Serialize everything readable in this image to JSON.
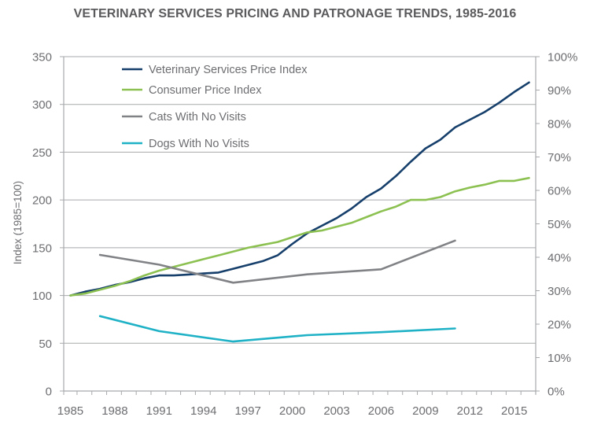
{
  "chart_data": {
    "type": "line",
    "title": "VETERINARY SERVICES PRICING AND PATRONAGE TRENDS, 1985-2016",
    "xlabel": "",
    "ylabel": "Index (1985=100)",
    "y2label": "",
    "xlim": [
      1984.55,
      2016.45
    ],
    "ylim": [
      0,
      350
    ],
    "y2lim": [
      0,
      100
    ],
    "grid": true,
    "legend_position": "top-left",
    "x_ticks": [
      "1985",
      "1988",
      "1991",
      "1994",
      "1997",
      "2000",
      "2003",
      "2006",
      "2009",
      "2012",
      "2015"
    ],
    "x_tick_values": [
      1985,
      1988,
      1991,
      1994,
      1997,
      2000,
      2003,
      2006,
      2009,
      2012,
      2015
    ],
    "y_ticks": [
      "0",
      "50",
      "100",
      "150",
      "200",
      "250",
      "300",
      "350"
    ],
    "y_tick_values": [
      0,
      50,
      100,
      150,
      200,
      250,
      300,
      350
    ],
    "y2_ticks": [
      "0%",
      "10%",
      "20%",
      "30%",
      "40%",
      "50%",
      "60%",
      "70%",
      "80%",
      "90%",
      "100%"
    ],
    "y2_tick_values": [
      0,
      10,
      20,
      30,
      40,
      50,
      60,
      70,
      80,
      90,
      100
    ],
    "series": [
      {
        "name": "Veterinary Services Price Index",
        "axis": "left",
        "color": "#163f6b",
        "x": [
          1985,
          1986,
          1987,
          1988,
          1989,
          1990,
          1991,
          1992,
          1993,
          1994,
          1995,
          1996,
          1997,
          1998,
          1999,
          2000,
          2001,
          2002,
          2003,
          2004,
          2005,
          2006,
          2007,
          2008,
          2009,
          2010,
          2011,
          2012,
          2013,
          2014,
          2015,
          2016
        ],
        "values": [
          100,
          104,
          107,
          111,
          114,
          118,
          121,
          121,
          122,
          123,
          124,
          128,
          132,
          136,
          142,
          154,
          165,
          173,
          181,
          191,
          203,
          212,
          225,
          240,
          254,
          263,
          276,
          284,
          292,
          302,
          313,
          323
        ]
      },
      {
        "name": "Consumer Price Index",
        "axis": "left",
        "color": "#8cc152",
        "x": [
          1985,
          1986,
          1987,
          1988,
          1989,
          1990,
          1991,
          1992,
          1993,
          1994,
          1995,
          1996,
          1997,
          1998,
          1999,
          2000,
          2001,
          2002,
          2003,
          2004,
          2005,
          2006,
          2007,
          2008,
          2009,
          2010,
          2011,
          2012,
          2013,
          2014,
          2015,
          2016
        ],
        "values": [
          100,
          102,
          106,
          110,
          115,
          121,
          126,
          130,
          134,
          138,
          142,
          146,
          150,
          153,
          156,
          161,
          166,
          168,
          172,
          176,
          182,
          188,
          193,
          200,
          200,
          203,
          209,
          213,
          216,
          220,
          220,
          223
        ]
      },
      {
        "name": "Cats With No Visits",
        "axis": "right",
        "color": "#808285",
        "x": [
          1987,
          1991,
          1996,
          2001,
          2006,
          2011
        ],
        "values": [
          40.7,
          37.8,
          32.4,
          34.9,
          36.4,
          45.0
        ]
      },
      {
        "name": "Dogs With No Visits",
        "axis": "right",
        "color": "#1fb1c6",
        "x": [
          1987,
          1991,
          1996,
          2001,
          2006,
          2011
        ],
        "values": [
          22.4,
          17.9,
          14.8,
          16.7,
          17.6,
          18.7
        ]
      }
    ]
  }
}
